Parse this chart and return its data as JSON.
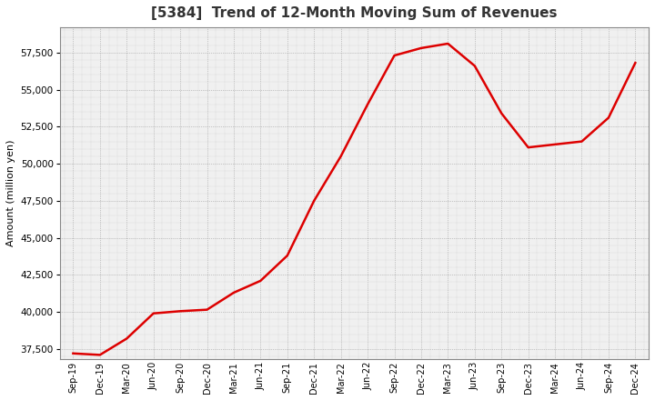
{
  "title": "[5384]  Trend of 12-Month Moving Sum of Revenues",
  "ylabel": "Amount (million yen)",
  "line_color": "#dd0000",
  "line_width": 1.8,
  "background_color": "#ffffff",
  "plot_bg_color": "#f0f0f0",
  "ylim": [
    36800,
    59200
  ],
  "yticks": [
    37500,
    40000,
    42500,
    45000,
    47500,
    50000,
    52500,
    55000,
    57500
  ],
  "x_labels": [
    "Sep-19",
    "Dec-19",
    "Mar-20",
    "Jun-20",
    "Sep-20",
    "Dec-20",
    "Mar-21",
    "Jun-21",
    "Sep-21",
    "Dec-21",
    "Mar-22",
    "Jun-22",
    "Sep-22",
    "Dec-22",
    "Mar-23",
    "Jun-23",
    "Sep-23",
    "Dec-23",
    "Mar-24",
    "Jun-24",
    "Sep-24",
    "Dec-24"
  ],
  "values": [
    37200,
    37100,
    38200,
    39900,
    40050,
    40150,
    41300,
    42100,
    43800,
    47500,
    50500,
    54000,
    57300,
    57800,
    58100,
    56600,
    53400,
    51100,
    51300,
    51500,
    53100,
    56800
  ]
}
